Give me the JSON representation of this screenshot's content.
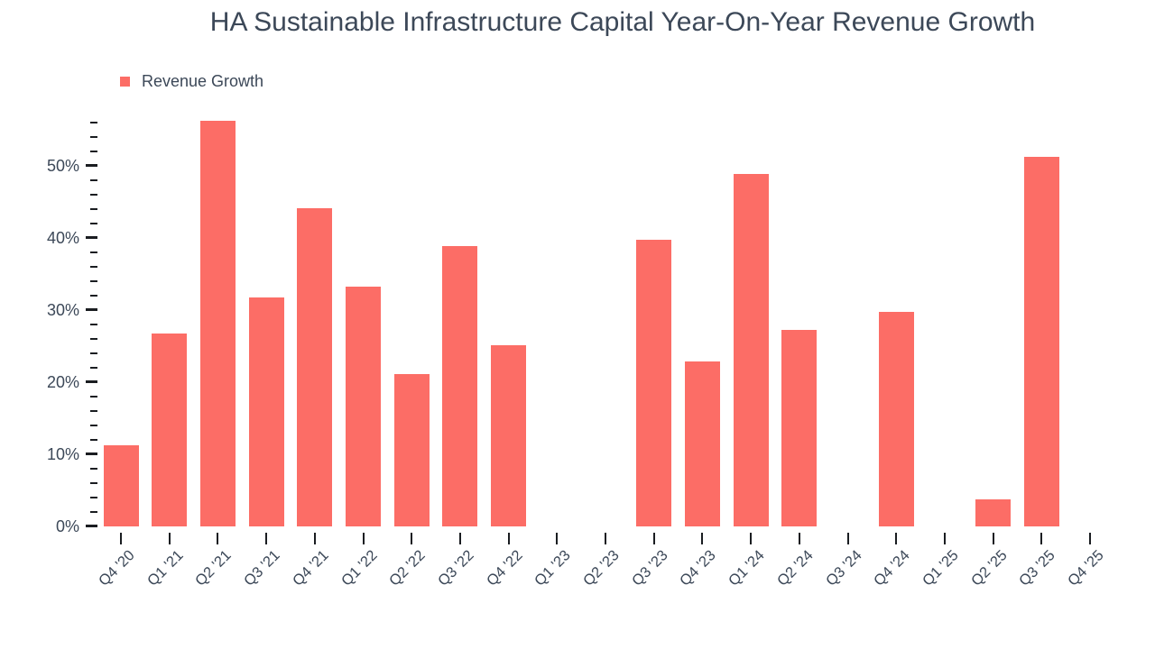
{
  "title": "HA Sustainable Infrastructure Capital Year-On-Year Revenue Growth",
  "legend": {
    "label": "Revenue Growth"
  },
  "colors": {
    "bar": "#FC6D66",
    "text": "#3C4858",
    "tick_mark": "#1A1D21",
    "background": "#FFFFFF"
  },
  "chart_data": {
    "type": "bar",
    "title": "HA Sustainable Infrastructure Capital Year-On-Year Revenue Growth",
    "xlabel": "",
    "ylabel": "",
    "unit": "%",
    "grid": false,
    "legend_position": "top-left",
    "categories": [
      "Q4 '20",
      "Q1 '21",
      "Q2 '21",
      "Q3 '21",
      "Q4 '21",
      "Q1 '22",
      "Q2 '22",
      "Q3 '22",
      "Q4 '22",
      "Q1 '23",
      "Q2 '23",
      "Q3 '23",
      "Q4 '23",
      "Q1 '24",
      "Q2 '24",
      "Q3 '24",
      "Q4 '24",
      "Q1 '25",
      "Q2 '25",
      "Q3 '25",
      "Q4 '25"
    ],
    "series": [
      {
        "name": "Revenue Growth",
        "color": "#FC6D66",
        "values": [
          11.3,
          26.8,
          56.3,
          31.8,
          44.1,
          33.2,
          21.1,
          38.9,
          25.1,
          null,
          null,
          39.8,
          22.9,
          48.9,
          27.2,
          null,
          29.8,
          null,
          3.8,
          51.3,
          null
        ]
      }
    ],
    "ylim": [
      0,
      57
    ],
    "y_major_step": 10,
    "y_minor_step": 2,
    "y_minor_max": 56,
    "y_tick_values": [
      0,
      10,
      20,
      30,
      40,
      50
    ],
    "y_tick_labels": [
      "0%",
      "10%",
      "20%",
      "30%",
      "40%",
      "50%"
    ]
  }
}
